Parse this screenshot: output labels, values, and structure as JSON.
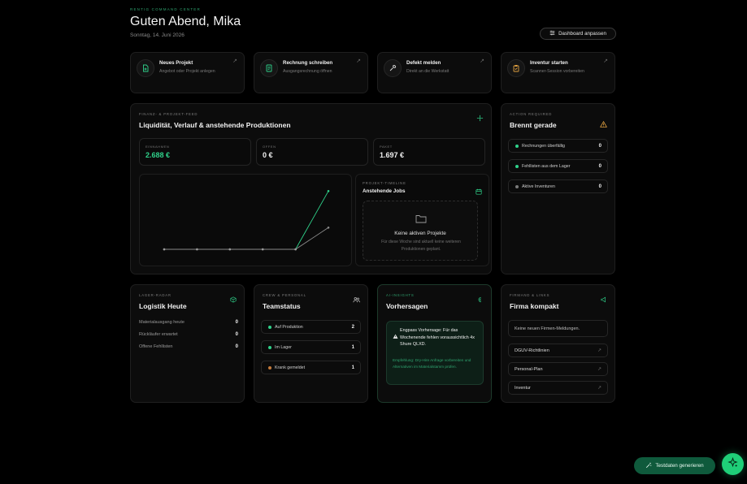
{
  "header": {
    "eyebrow": "RENTIG COMMAND CENTER",
    "greeting": "Guten Abend, Mika",
    "date": "Sonntag, 14. Juni 2026",
    "customize_label": "Dashboard anpassen"
  },
  "quick_actions": [
    {
      "title": "Neues Projekt",
      "subtitle": "Angebot oder Projekt anlegen",
      "icon": "document-plus-icon"
    },
    {
      "title": "Rechnung schreiben",
      "subtitle": "Ausgangsrechnung öffnen",
      "icon": "invoice-icon"
    },
    {
      "title": "Defekt melden",
      "subtitle": "Direkt an die Werkstatt",
      "icon": "wrench-icon"
    },
    {
      "title": "Inventur starten",
      "subtitle": "Scanner-Session vorbereiten",
      "icon": "clipboard-icon"
    }
  ],
  "finance": {
    "eyebrow": "FINANZ- & PROJEKT-FEED",
    "title": "Liquidität, Verlauf & anstehende Produktionen",
    "kpis": [
      {
        "label": "EINNAHMEN",
        "value": "2.688 €",
        "accent": "#2fd18a"
      },
      {
        "label": "OFFEN",
        "value": "0 €",
        "accent": "#f0f0f0"
      },
      {
        "label": "PAKET",
        "value": "1.697 €",
        "accent": "#f0f0f0"
      }
    ],
    "timeline": {
      "eyebrow": "PROJEKT-TIMELINE",
      "title": "Anstehende Jobs",
      "empty_title": "Keine aktiven Projekte",
      "empty_sub": "Für diese Woche sind aktuell keine weiteren Produktionen geplant."
    }
  },
  "chart_data": {
    "type": "line",
    "title": "",
    "xlabel": "",
    "ylabel": "",
    "x": [
      1,
      2,
      3,
      4,
      5,
      6
    ],
    "ylim": [
      0,
      3000
    ],
    "grid": false,
    "series": [
      {
        "values": [
          0,
          0,
          0,
          0,
          0,
          2688
        ],
        "color": "#2fd18a"
      },
      {
        "values": [
          0,
          0,
          0,
          0,
          0,
          1000
        ],
        "color": "#8a8a8a"
      }
    ]
  },
  "action": {
    "eyebrow": "ACTION REQUIRED",
    "title": "Brennt gerade",
    "items": [
      {
        "label": "Rechnungen überfällig",
        "value": "0",
        "dot": "#2fd18a"
      },
      {
        "label": "Fehllisten aus dem Lager",
        "value": "0",
        "dot": "#2fd18a"
      },
      {
        "label": "Aktive Inventuren",
        "value": "0",
        "dot": "#7a7a7a"
      }
    ]
  },
  "logistics": {
    "eyebrow": "LAGER-RADAR",
    "title": "Logistik Heute",
    "rows": [
      {
        "label": "Materialausgang heute",
        "value": "0"
      },
      {
        "label": "Rückläufer erwartet",
        "value": "0"
      },
      {
        "label": "Offene Fehllisten",
        "value": "0"
      }
    ]
  },
  "team": {
    "eyebrow": "CREW & PERSONAL",
    "title": "Teamstatus",
    "rows": [
      {
        "label": "Auf Produktion",
        "value": "2",
        "dot": "#2fd18a"
      },
      {
        "label": "Im Lager",
        "value": "1",
        "dot": "#2fd18a"
      },
      {
        "label": "Krank gemeldet",
        "value": "1",
        "dot": "#c47a3a"
      }
    ]
  },
  "forecast": {
    "eyebrow": "AI-INSIGHTS",
    "title": "Vorhersagen",
    "alert_text": "Engpass Vorhersage: Für das Wochenende fehlen voraussichtlich 4x Shure QLXD.",
    "recommendation": "Empfehlung: Dry-Hire Anfrage vorbereiten und Alternativen im Materialstamm prüfen."
  },
  "company": {
    "eyebrow": "FIRMAND & LINKS",
    "title": "Firma kompakt",
    "notice": "Keine neuen Firmen-Meldungen.",
    "links": [
      {
        "label": "DGUV-Richtlinien"
      },
      {
        "label": "Personal-Plan"
      },
      {
        "label": "Inventur"
      }
    ]
  },
  "footer": {
    "generate_label": "Testdaten generieren"
  },
  "colors": {
    "accent": "#2fd18a",
    "background": "#000000",
    "card": "#0c0c0c"
  }
}
